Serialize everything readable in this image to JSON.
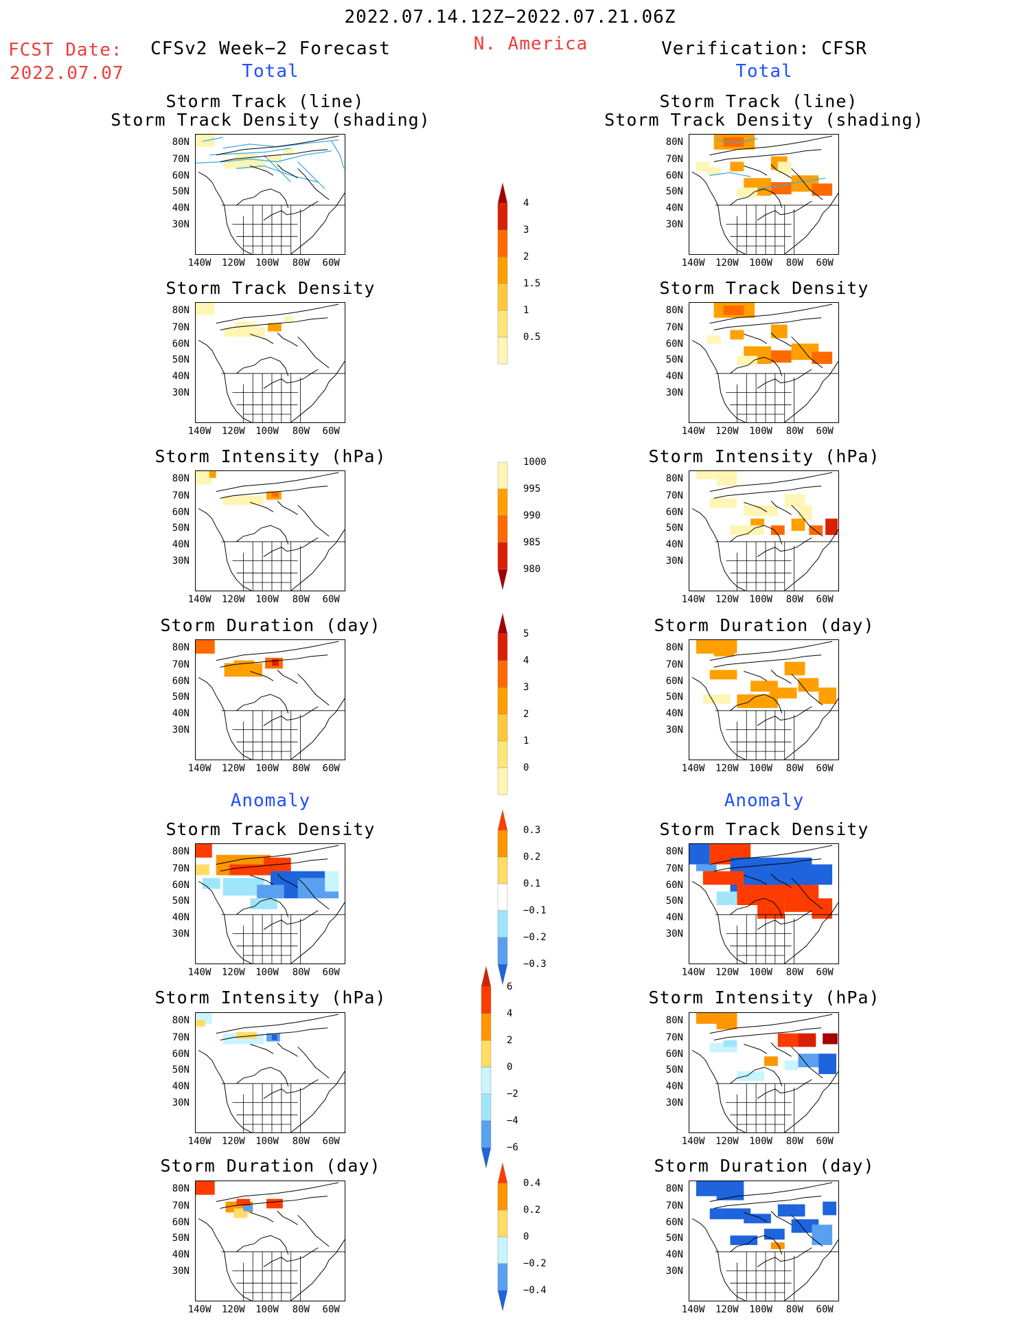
{
  "header": {
    "period": "2022.07.14.12Z−2022.07.21.06Z",
    "region": "N. America",
    "fcst_label": "FCST Date:",
    "fcst_date": "2022.07.07",
    "left_title": "CFSv2 Week−2 Forecast",
    "right_title": "Verification: CFSR",
    "total_left": "Total",
    "total_right": "Total",
    "anomaly_left": "Anomaly",
    "anomaly_right": "Anomaly"
  },
  "axes": {
    "lat_labels": [
      "80N",
      "70N",
      "60N",
      "50N",
      "40N",
      "30N"
    ],
    "lon_labels": [
      "140W",
      "120W",
      "100W",
      "80W",
      "60W"
    ]
  },
  "panels": {
    "r1": {
      "line1": "Storm Track (line)",
      "line2": "Storm Track Density (shading)"
    },
    "r2": "Storm Track Density",
    "r3": "Storm Intensity (hPa)",
    "r4": "Storm Duration (day)",
    "r5": "Storm Track Density",
    "r6": "Storm Intensity (hPa)",
    "r7": "Storm Duration (day)"
  },
  "colorbars": {
    "density": {
      "labels": [
        "4",
        "3",
        "2",
        "1.5",
        "1",
        "0.5"
      ],
      "colors": [
        "#a50000",
        "#d92000",
        "#ff6a00",
        "#ffa000",
        "#ffc83c",
        "#ffe678",
        "#fff5b4"
      ]
    },
    "intensity": {
      "labels": [
        "1000",
        "995",
        "990",
        "985",
        "980"
      ],
      "colors": [
        "#fff5b4",
        "#ffa000",
        "#ff6a00",
        "#d92000",
        "#a50000"
      ]
    },
    "duration": {
      "labels": [
        "5",
        "4",
        "3",
        "2",
        "1",
        "0"
      ],
      "colors": [
        "#a50000",
        "#d92000",
        "#ff6a00",
        "#ffa000",
        "#ffc83c",
        "#ffe678",
        "#fff5b4"
      ]
    },
    "density_anom": {
      "labels": [
        "0.3",
        "0.2",
        "0.1",
        "−0.1",
        "−0.2",
        "−0.3"
      ],
      "colors": [
        "#ff3c00",
        "#ff9600",
        "#ffdc64",
        "#ffffff",
        "#a0e6fa",
        "#5aa0f0",
        "#1e64dc"
      ]
    },
    "intensity_anom": {
      "labels": [
        "6",
        "4",
        "2",
        "0",
        "−2",
        "−4",
        "−6"
      ],
      "colors": [
        "#d92000",
        "#ff3c00",
        "#ff9600",
        "#ffdc64",
        "#c8f5ff",
        "#a0e6fa",
        "#5aa0f0",
        "#1e64dc"
      ]
    },
    "duration_anom": {
      "labels": [
        "0.4",
        "0.2",
        "0",
        "−0.2",
        "−0.4"
      ],
      "colors": [
        "#ff3c00",
        "#ff9600",
        "#ffdc64",
        "#c8f5ff",
        "#5aa0f0",
        "#1e64dc"
      ]
    }
  }
}
